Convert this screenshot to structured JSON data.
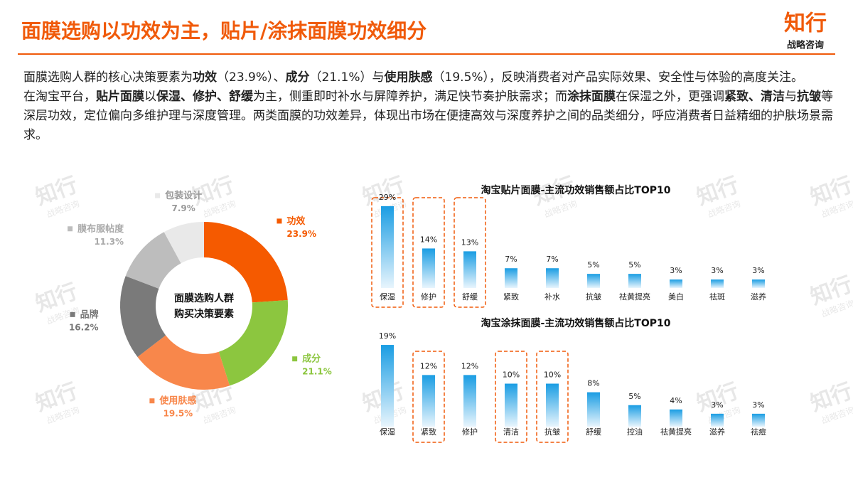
{
  "header": {
    "title": "面膜选购以功效为主，贴片/涂抹面膜功效细分"
  },
  "logo": {
    "name": "知行",
    "sub": "战略咨询"
  },
  "paragraphs": [
    [
      {
        "text": "面膜选购人群的核心决策要素为",
        "bold": false
      },
      {
        "text": "功效",
        "bold": true
      },
      {
        "text": "（23.9%）、",
        "bold": false
      },
      {
        "text": "成分",
        "bold": true
      },
      {
        "text": "（21.1%）与",
        "bold": false
      },
      {
        "text": "使用肤感",
        "bold": true
      },
      {
        "text": "（19.5%），反映消费者对产品实际效果、安全性与体验的高度关注。",
        "bold": false
      }
    ],
    [
      {
        "text": "在淘宝平台，",
        "bold": false
      },
      {
        "text": "贴片面膜",
        "bold": true
      },
      {
        "text": "以",
        "bold": false
      },
      {
        "text": "保湿、修护、舒缓",
        "bold": true
      },
      {
        "text": "为主，侧重即时补水与屏障养护，满足快节奏护肤需求；而",
        "bold": false
      },
      {
        "text": "涂抹面膜",
        "bold": true
      },
      {
        "text": "在保湿之外，更强调",
        "bold": false
      },
      {
        "text": "紧致、清洁",
        "bold": true
      },
      {
        "text": "与",
        "bold": false
      },
      {
        "text": "抗皱",
        "bold": true
      },
      {
        "text": "等深层功效，定位偏向多维护理与深度管理。两类面膜的功效差异，体现出市场在便捷高效与深度养护之间的品类细分，呼应消费者日益精细的护肤场景需求。",
        "bold": false
      }
    ]
  ],
  "chart_data": [
    {
      "type": "donut",
      "center_text": [
        "面膜选购人群",
        "购买决策要素"
      ],
      "categories": [
        "功效",
        "成分",
        "使用肤感",
        "品牌",
        "膜布服帖度",
        "包装设计"
      ],
      "values": [
        23.9,
        21.1,
        19.5,
        16.2,
        11.3,
        7.9
      ],
      "value_labels": [
        "23.9%",
        "21.1%",
        "19.5%",
        "16.2%",
        "11.3%",
        "7.9%"
      ],
      "colors": [
        "#f55a00",
        "#8cc63f",
        "#f8874b",
        "#7a7a7a",
        "#bdbdbd",
        "#e9e9e9"
      ],
      "label_colors": [
        "#f55a00",
        "#8cc63f",
        "#f8874b",
        "#777777",
        "#aaaaaa",
        "#999999"
      ]
    },
    {
      "type": "bar",
      "title": "淘宝贴片面膜-主流功效销售额占比TOP10",
      "categories": [
        "保湿",
        "修护",
        "舒缓",
        "紧致",
        "补水",
        "抗皱",
        "祛黄提亮",
        "美白",
        "祛斑",
        "滋养"
      ],
      "values": [
        29,
        14,
        13,
        7,
        7,
        5,
        5,
        3,
        3,
        3
      ],
      "value_labels": [
        "29%",
        "14%",
        "13%",
        "7%",
        "7%",
        "5%",
        "5%",
        "3%",
        "3%",
        "3%"
      ],
      "highlight": [
        true,
        true,
        true,
        false,
        false,
        false,
        false,
        false,
        false,
        false
      ],
      "color": "#1a9de3"
    },
    {
      "type": "bar",
      "title": "淘宝涂抹面膜-主流功效销售额占比TOP10",
      "categories": [
        "保湿",
        "紧致",
        "修护",
        "清洁",
        "抗皱",
        "舒缓",
        "控油",
        "祛黄提亮",
        "滋养",
        "祛痘"
      ],
      "values": [
        19,
        12,
        12,
        10,
        10,
        8,
        5,
        4,
        3,
        3
      ],
      "value_labels": [
        "19%",
        "12%",
        "12%",
        "10%",
        "10%",
        "8%",
        "5%",
        "4%",
        "3%",
        "3%"
      ],
      "highlight": [
        false,
        true,
        false,
        true,
        true,
        false,
        false,
        false,
        false,
        false
      ],
      "color": "#1a9de3"
    }
  ]
}
